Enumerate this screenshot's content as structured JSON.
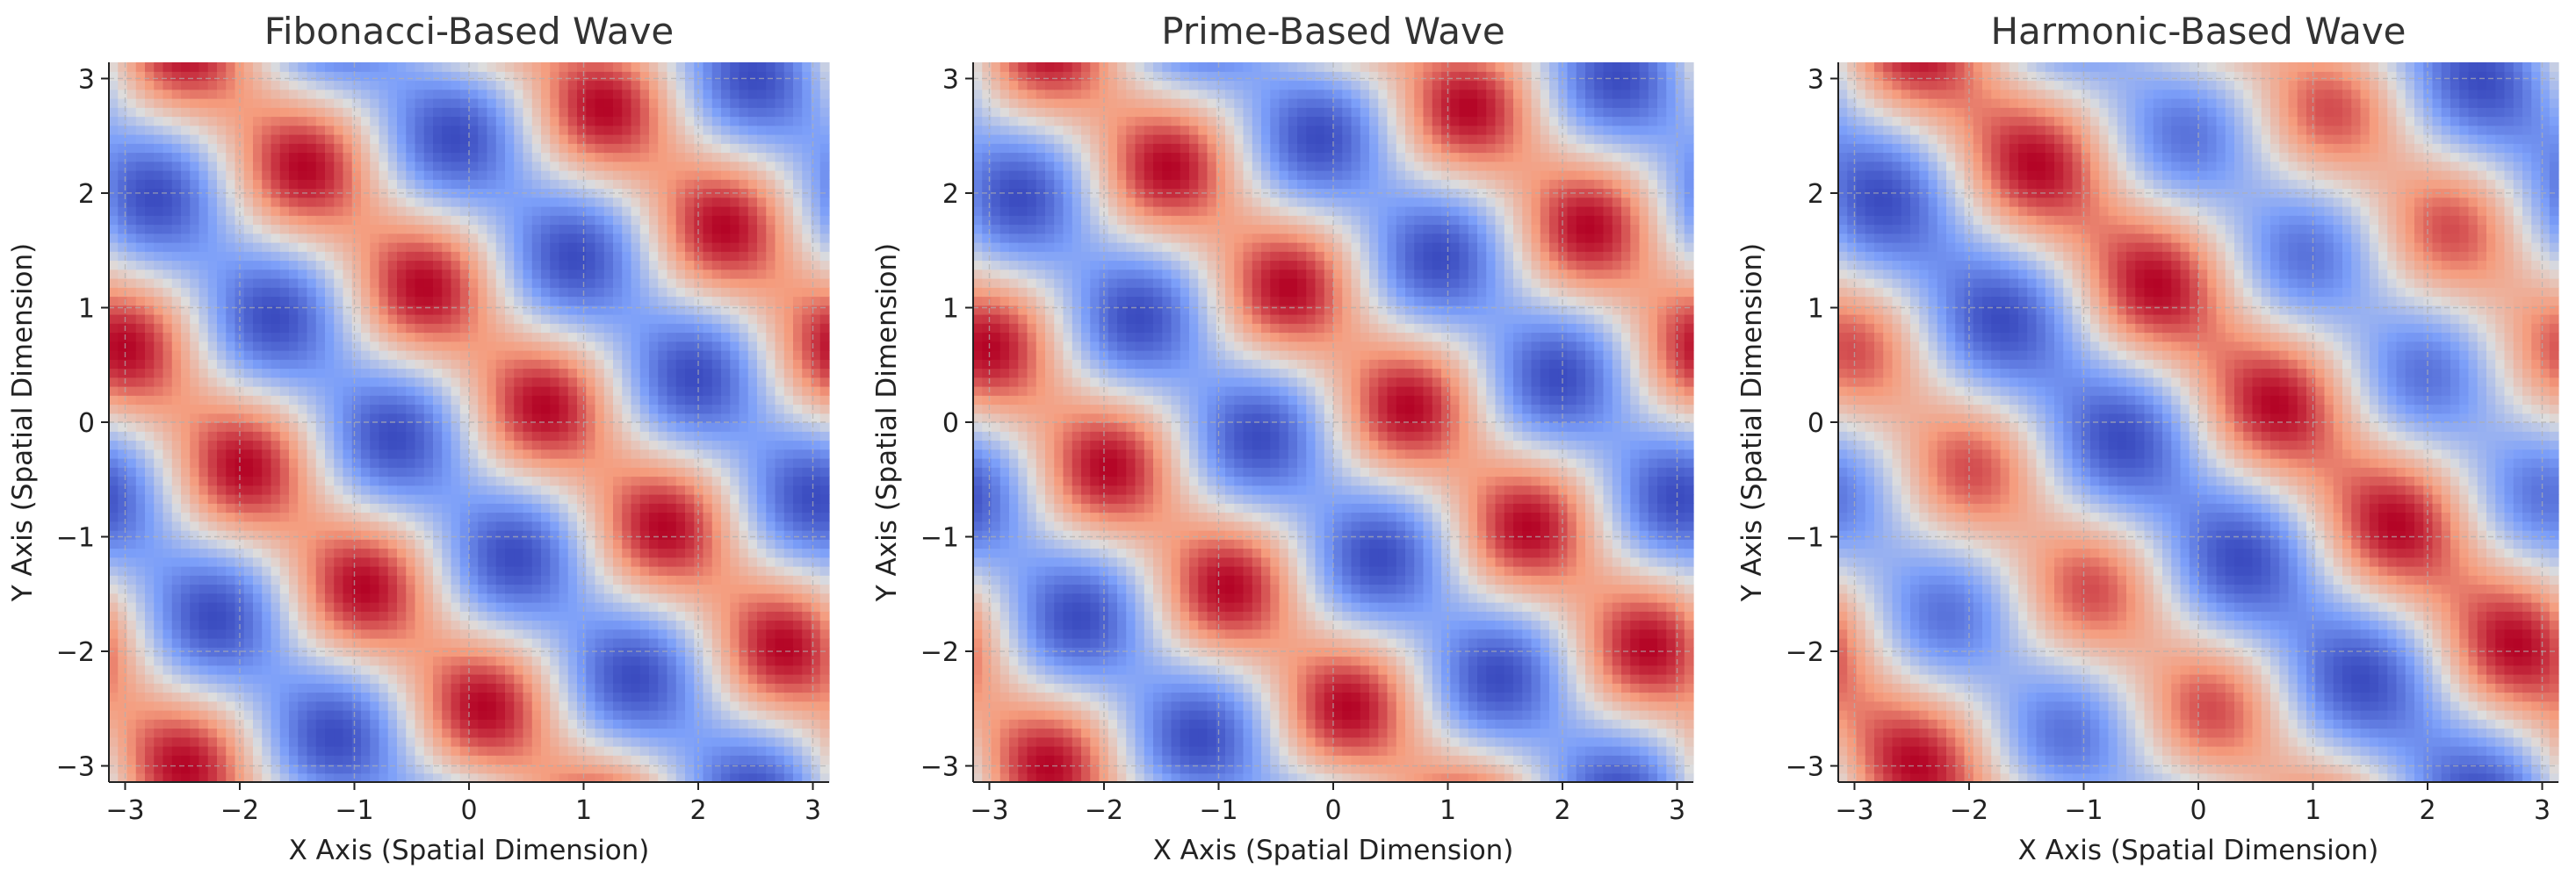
{
  "chart_data": [
    {
      "type": "heatmap",
      "title": "Fibonacci-Based Wave",
      "xlabel": "X Axis (Spatial Dimension)",
      "ylabel": "Y Axis (Spatial Dimension)",
      "xlim": [
        -3.14159,
        3.14159
      ],
      "ylim": [
        -3.14159,
        3.14159
      ],
      "xticks": [
        "−3",
        "−2",
        "−1",
        "0",
        "1",
        "2",
        "3"
      ],
      "yticks": [
        "−3",
        "−2",
        "−1",
        "0",
        "1",
        "2",
        "3"
      ],
      "xtick_values": [
        -3,
        -2,
        -1,
        0,
        1,
        2,
        3
      ],
      "ytick_values": [
        -3,
        -2,
        -1,
        0,
        1,
        2,
        3
      ],
      "grid": true,
      "colormap": "coolwarm",
      "field": {
        "terms": [
          {
            "amp": 1.0,
            "kx": 2,
            "ky": 2
          },
          {
            "amp": 0.35,
            "kx": 3,
            "ky": -3
          }
        ]
      }
    },
    {
      "type": "heatmap",
      "title": "Prime-Based Wave",
      "xlabel": "X Axis (Spatial Dimension)",
      "ylabel": "Y Axis (Spatial Dimension)",
      "xlim": [
        -3.14159,
        3.14159
      ],
      "ylim": [
        -3.14159,
        3.14159
      ],
      "xticks": [
        "−3",
        "−2",
        "−1",
        "0",
        "1",
        "2",
        "3"
      ],
      "yticks": [
        "−3",
        "−2",
        "−1",
        "0",
        "1",
        "2",
        "3"
      ],
      "xtick_values": [
        -3,
        -2,
        -1,
        0,
        1,
        2,
        3
      ],
      "ytick_values": [
        -3,
        -2,
        -1,
        0,
        1,
        2,
        3
      ],
      "grid": true,
      "colormap": "coolwarm",
      "field": {
        "terms": [
          {
            "amp": 1.0,
            "kx": 2,
            "ky": 2
          },
          {
            "amp": 0.38,
            "kx": 3,
            "ky": -3
          }
        ]
      }
    },
    {
      "type": "heatmap",
      "title": "Harmonic-Based Wave",
      "xlabel": "X Axis (Spatial Dimension)",
      "ylabel": "Y Axis (Spatial Dimension)",
      "xlim": [
        -3.14159,
        3.14159
      ],
      "ylim": [
        -3.14159,
        3.14159
      ],
      "xticks": [
        "−3",
        "−2",
        "−1",
        "0",
        "1",
        "2",
        "3"
      ],
      "yticks": [
        "−3",
        "−2",
        "−1",
        "0",
        "1",
        "2",
        "3"
      ],
      "xtick_values": [
        -3,
        -2,
        -1,
        0,
        1,
        2,
        3
      ],
      "ytick_values": [
        -3,
        -2,
        -1,
        0,
        1,
        2,
        3
      ],
      "grid": true,
      "colormap": "coolwarm",
      "field": {
        "terms": [
          {
            "amp": 1.0,
            "kx": 2,
            "ky": 2
          },
          {
            "amp": 0.3,
            "kx": 3,
            "ky": -3
          },
          {
            "amp": 0.25,
            "kx": 1,
            "ky": 1
          }
        ]
      }
    }
  ]
}
